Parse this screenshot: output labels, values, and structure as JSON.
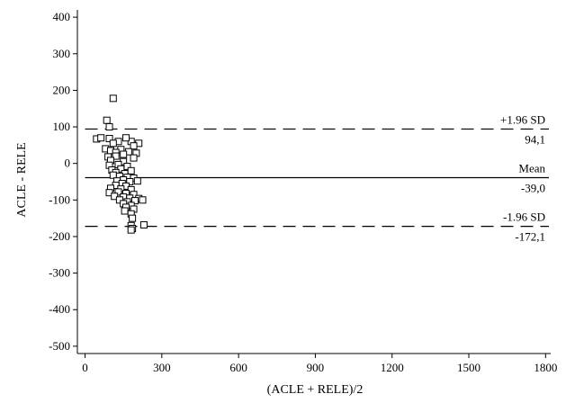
{
  "chart_data": {
    "type": "scatter",
    "title": "",
    "xlabel": "(ACLE + RELE)/2",
    "ylabel": "ACLE - RELE",
    "xlim": [
      -30,
      1820
    ],
    "ylim": [
      -520,
      420
    ],
    "xticks": [
      0,
      300,
      600,
      900,
      1200,
      1500,
      1800
    ],
    "yticks": [
      400,
      300,
      200,
      100,
      0,
      -100,
      -200,
      -300,
      -400,
      -500
    ],
    "grid": false,
    "reference_lines": [
      {
        "name": "+1.96 SD",
        "value": 94.1,
        "value_label": "94,1",
        "style": "dashed"
      },
      {
        "name": "Mean",
        "value": -39.0,
        "value_label": "-39,0",
        "style": "solid"
      },
      {
        "name": "-1.96 SD",
        "value": -172.1,
        "value_label": "-172,1",
        "style": "dashed"
      }
    ],
    "points": [
      [
        110,
        178
      ],
      [
        85,
        118
      ],
      [
        95,
        100
      ],
      [
        45,
        67
      ],
      [
        62,
        70
      ],
      [
        95,
        68
      ],
      [
        180,
        60
      ],
      [
        130,
        60
      ],
      [
        160,
        70
      ],
      [
        110,
        55
      ],
      [
        210,
        55
      ],
      [
        190,
        48
      ],
      [
        80,
        40
      ],
      [
        100,
        35
      ],
      [
        140,
        38
      ],
      [
        120,
        30
      ],
      [
        170,
        32
      ],
      [
        150,
        25
      ],
      [
        120,
        20
      ],
      [
        90,
        18
      ],
      [
        200,
        28
      ],
      [
        100,
        8
      ],
      [
        150,
        5
      ],
      [
        190,
        15
      ],
      [
        95,
        -5
      ],
      [
        130,
        -3
      ],
      [
        165,
        -8
      ],
      [
        105,
        -18
      ],
      [
        140,
        -15
      ],
      [
        120,
        -25
      ],
      [
        155,
        -28
      ],
      [
        180,
        -20
      ],
      [
        110,
        -32
      ],
      [
        135,
        -35
      ],
      [
        165,
        -38
      ],
      [
        190,
        -40
      ],
      [
        150,
        -45
      ],
      [
        125,
        -48
      ],
      [
        175,
        -50
      ],
      [
        205,
        -48
      ],
      [
        145,
        -55
      ],
      [
        120,
        -60
      ],
      [
        160,
        -62
      ],
      [
        100,
        -68
      ],
      [
        140,
        -70
      ],
      [
        180,
        -72
      ],
      [
        130,
        -78
      ],
      [
        160,
        -82
      ],
      [
        95,
        -80
      ],
      [
        190,
        -85
      ],
      [
        115,
        -90
      ],
      [
        150,
        -92
      ],
      [
        175,
        -95
      ],
      [
        210,
        -96
      ],
      [
        135,
        -100
      ],
      [
        165,
        -105
      ],
      [
        195,
        -102
      ],
      [
        225,
        -100
      ],
      [
        150,
        -110
      ],
      [
        180,
        -115
      ],
      [
        160,
        -120
      ],
      [
        190,
        -125
      ],
      [
        155,
        -130
      ],
      [
        180,
        -138
      ],
      [
        185,
        -150
      ],
      [
        230,
        -168
      ],
      [
        180,
        -170
      ],
      [
        185,
        -178
      ],
      [
        180,
        -182
      ]
    ]
  }
}
